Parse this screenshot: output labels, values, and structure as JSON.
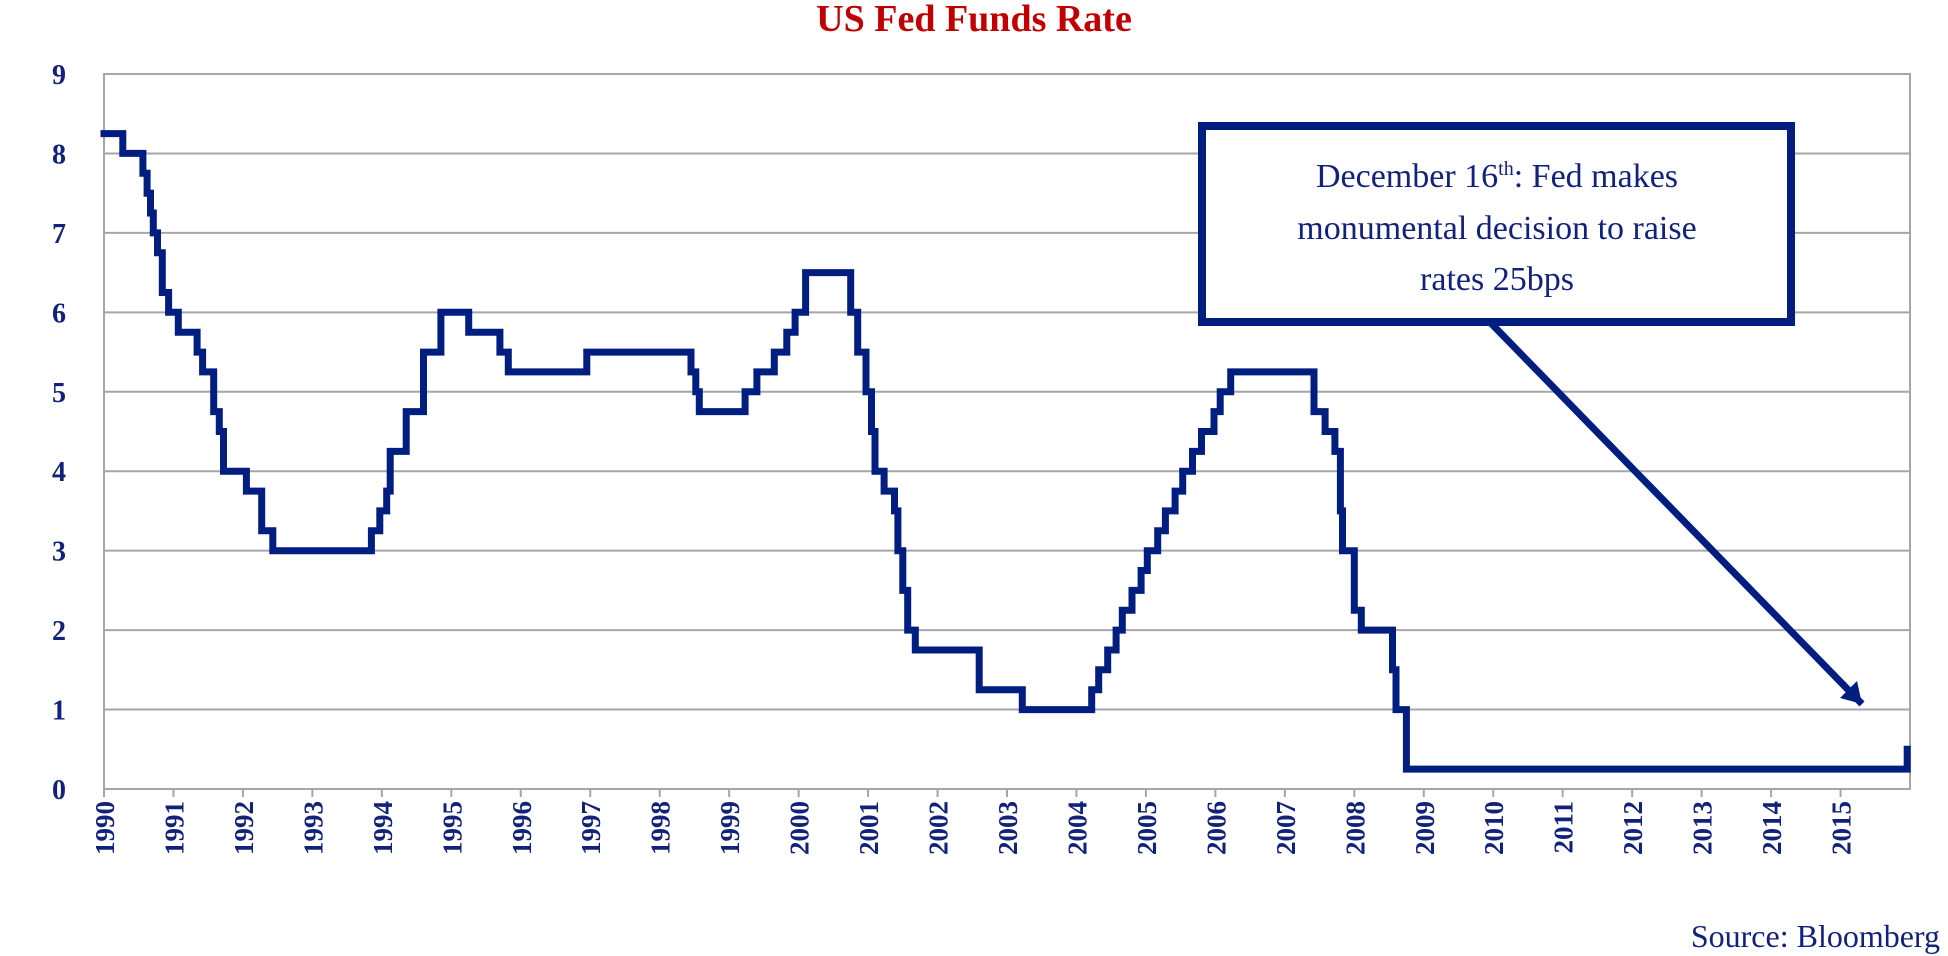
{
  "chart_data": {
    "type": "line",
    "title": "US Fed Funds Rate",
    "source": "Source: Bloomberg",
    "xlabel": "",
    "ylabel": "",
    "xlim": [
      1990,
      2016
    ],
    "ylim": [
      0,
      9
    ],
    "yticks": [
      "0",
      "1",
      "2",
      "3",
      "4",
      "5",
      "6",
      "7",
      "8",
      "9"
    ],
    "xticks": [
      "1990",
      "1991",
      "1992",
      "1993",
      "1994",
      "1995",
      "1996",
      "1997",
      "1998",
      "1999",
      "2000",
      "2001",
      "2002",
      "2003",
      "2004",
      "2005",
      "2006",
      "2007",
      "2008",
      "2009",
      "2010",
      "2011",
      "2012",
      "2013",
      "2014",
      "2015"
    ],
    "grid": true,
    "step": true,
    "annotation": {
      "text_before": "December 16",
      "superscript": "th",
      "text_line1_after": ": Fed makes",
      "line2": "monumental decision to raise",
      "line3": "rates 25bps",
      "points_to": [
        2015.96,
        0.5
      ]
    },
    "series": [
      {
        "color": "#001d80",
        "points": [
          [
            1990.0,
            8.25
          ],
          [
            1990.27,
            8.0
          ],
          [
            1990.56,
            7.75
          ],
          [
            1990.62,
            7.5
          ],
          [
            1990.67,
            7.25
          ],
          [
            1990.71,
            7.0
          ],
          [
            1990.77,
            6.75
          ],
          [
            1990.84,
            6.25
          ],
          [
            1990.93,
            6.0
          ],
          [
            1991.07,
            5.75
          ],
          [
            1991.34,
            5.5
          ],
          [
            1991.42,
            5.25
          ],
          [
            1991.58,
            4.75
          ],
          [
            1991.66,
            4.5
          ],
          [
            1991.72,
            4.0
          ],
          [
            1992.05,
            3.75
          ],
          [
            1992.27,
            3.25
          ],
          [
            1992.43,
            3.0
          ],
          [
            1993.85,
            3.25
          ],
          [
            1993.97,
            3.5
          ],
          [
            1994.07,
            3.75
          ],
          [
            1994.12,
            4.25
          ],
          [
            1994.35,
            4.75
          ],
          [
            1994.6,
            5.5
          ],
          [
            1994.85,
            6.0
          ],
          [
            1995.25,
            5.75
          ],
          [
            1995.7,
            5.5
          ],
          [
            1995.82,
            5.25
          ],
          [
            1996.95,
            5.5
          ],
          [
            1998.45,
            5.25
          ],
          [
            1998.52,
            5.0
          ],
          [
            1998.57,
            4.75
          ],
          [
            1999.23,
            5.0
          ],
          [
            1999.4,
            5.25
          ],
          [
            1999.65,
            5.5
          ],
          [
            1999.83,
            5.75
          ],
          [
            1999.95,
            6.0
          ],
          [
            2000.1,
            6.5
          ],
          [
            2000.75,
            6.0
          ],
          [
            2000.85,
            5.5
          ],
          [
            2000.97,
            5.0
          ],
          [
            2001.05,
            4.5
          ],
          [
            2001.1,
            4.0
          ],
          [
            2001.23,
            3.75
          ],
          [
            2001.38,
            3.5
          ],
          [
            2001.43,
            3.0
          ],
          [
            2001.5,
            2.5
          ],
          [
            2001.57,
            2.0
          ],
          [
            2001.68,
            1.75
          ],
          [
            2002.6,
            1.25
          ],
          [
            2003.22,
            1.0
          ],
          [
            2004.22,
            1.25
          ],
          [
            2004.32,
            1.5
          ],
          [
            2004.45,
            1.75
          ],
          [
            2004.57,
            2.0
          ],
          [
            2004.66,
            2.25
          ],
          [
            2004.8,
            2.5
          ],
          [
            2004.93,
            2.75
          ],
          [
            2005.02,
            3.0
          ],
          [
            2005.17,
            3.25
          ],
          [
            2005.28,
            3.5
          ],
          [
            2005.42,
            3.75
          ],
          [
            2005.53,
            4.0
          ],
          [
            2005.67,
            4.25
          ],
          [
            2005.8,
            4.5
          ],
          [
            2005.98,
            4.75
          ],
          [
            2006.07,
            5.0
          ],
          [
            2006.22,
            5.25
          ],
          [
            2007.42,
            4.75
          ],
          [
            2007.58,
            4.5
          ],
          [
            2007.72,
            4.25
          ],
          [
            2007.8,
            3.5
          ],
          [
            2007.83,
            3.0
          ],
          [
            2008.0,
            2.25
          ],
          [
            2008.1,
            2.0
          ],
          [
            2008.55,
            1.5
          ],
          [
            2008.6,
            1.0
          ],
          [
            2008.75,
            0.25
          ],
          [
            2015.96,
            0.5
          ]
        ]
      }
    ]
  }
}
